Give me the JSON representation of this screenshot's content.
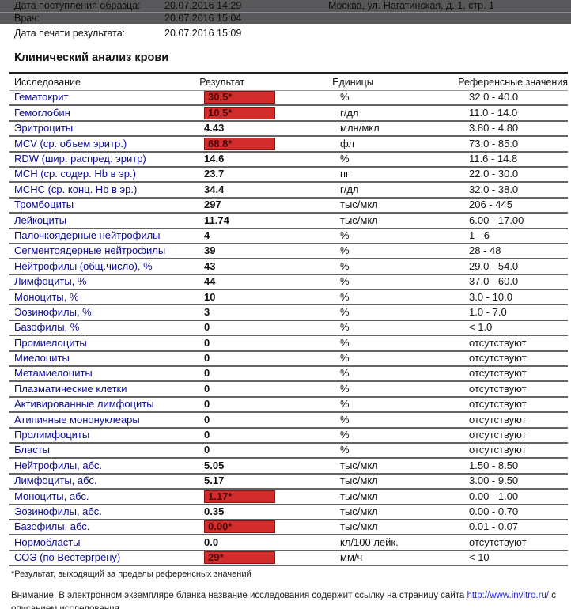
{
  "header": {
    "rows": [
      {
        "label": "Дата поступления образца:",
        "value": "20.07.2016 14:29"
      },
      {
        "label": "Врач:",
        "value": "20.07.2016 15:04"
      },
      {
        "label": "Дата печати результата:",
        "value": "20.07.2016 15:09"
      }
    ],
    "clinic_address": "Москва, ул. Нагатинская, д. 1, стр. 1"
  },
  "section_title": "Клинический анализ крови",
  "table": {
    "columns": [
      "Исследование",
      "Результат",
      "Единицы",
      "Референсные значения"
    ],
    "rows": [
      {
        "name": "Гематокрит",
        "result": "30.5*",
        "flag": true,
        "units": "%",
        "ref": "32.0 - 40.0"
      },
      {
        "name": "Гемоглобин",
        "result": "10.5*",
        "flag": true,
        "units": "г/дл",
        "ref": "11.0 - 14.0"
      },
      {
        "name": "Эритроциты",
        "result": "4.43",
        "flag": false,
        "units": "млн/мкл",
        "ref": "3.80 - 4.80"
      },
      {
        "name": "MCV (ср. объем эритр.)",
        "result": "68.8*",
        "flag": true,
        "units": "фл",
        "ref": "73.0 - 85.0"
      },
      {
        "name": "RDW (шир. распред. эритр)",
        "result": "14.6",
        "flag": false,
        "units": "%",
        "ref": "11.6 - 14.8"
      },
      {
        "name": "MCH (ср. содер. Hb в эр.)",
        "result": "23.7",
        "flag": false,
        "units": "пг",
        "ref": "22.0 - 30.0"
      },
      {
        "name": "МСНС (ср. конц. Hb в эр.)",
        "result": "34.4",
        "flag": false,
        "units": "г/дл",
        "ref": "32.0 - 38.0"
      },
      {
        "name": "Тромбоциты",
        "result": "297",
        "flag": false,
        "units": "тыс/мкл",
        "ref": "206 - 445"
      },
      {
        "name": "Лейкоциты",
        "result": "11.74",
        "flag": false,
        "units": "тыс/мкл",
        "ref": "6.00 - 17.00"
      },
      {
        "name": "Палочкоядерные нейтрофилы",
        "result": "4",
        "flag": false,
        "units": "%",
        "ref": "1 - 6"
      },
      {
        "name": "Сегментоядерные нейтрофилы",
        "result": "39",
        "flag": false,
        "units": "%",
        "ref": "28 - 48"
      },
      {
        "name": "Нейтрофилы (общ.число), %",
        "result": "43",
        "flag": false,
        "units": "%",
        "ref": "29.0 - 54.0"
      },
      {
        "name": "Лимфоциты, %",
        "result": "44",
        "flag": false,
        "units": "%",
        "ref": "37.0 - 60.0"
      },
      {
        "name": "Моноциты, %",
        "result": "10",
        "flag": false,
        "units": "%",
        "ref": "3.0 - 10.0"
      },
      {
        "name": "Эозинофилы, %",
        "result": "3",
        "flag": false,
        "units": "%",
        "ref": "1.0 - 7.0"
      },
      {
        "name": "Базофилы, %",
        "result": "0",
        "flag": false,
        "units": "%",
        "ref": "< 1.0"
      },
      {
        "name": "Промиелоциты",
        "result": "0",
        "flag": false,
        "units": "%",
        "ref": "отсутствуют"
      },
      {
        "name": "Миелоциты",
        "result": "0",
        "flag": false,
        "units": "%",
        "ref": "отсутствуют"
      },
      {
        "name": "Метамиелоциты",
        "result": "0",
        "flag": false,
        "units": "%",
        "ref": "отсутствуют"
      },
      {
        "name": "Плазматические клетки",
        "result": "0",
        "flag": false,
        "units": "%",
        "ref": "отсутствуют"
      },
      {
        "name": "Активированные лимфоциты",
        "result": "0",
        "flag": false,
        "units": "%",
        "ref": "отсутствуют"
      },
      {
        "name": "Атипичные мононуклеары",
        "result": "0",
        "flag": false,
        "units": "%",
        "ref": "отсутствуют"
      },
      {
        "name": "Пролимфоциты",
        "result": "0",
        "flag": false,
        "units": "%",
        "ref": "отсутствуют"
      },
      {
        "name": "Бласты",
        "result": "0",
        "flag": false,
        "units": "%",
        "ref": "отсутствуют"
      },
      {
        "name": "Нейтрофилы, абс.",
        "result": "5.05",
        "flag": false,
        "units": "тыс/мкл",
        "ref": "1.50 - 8.50"
      },
      {
        "name": "Лимфоциты, абс.",
        "result": "5.17",
        "flag": false,
        "units": "тыс/мкл",
        "ref": "3.00 - 9.50"
      },
      {
        "name": "Моноциты, абс.",
        "result": "1.17*",
        "flag": true,
        "units": "тыс/мкл",
        "ref": "0.00 - 1.00"
      },
      {
        "name": "Эозинофилы, абс.",
        "result": "0.35",
        "flag": false,
        "units": "тыс/мкл",
        "ref": "0.00 - 0.70"
      },
      {
        "name": "Базофилы, абс.",
        "result": "0.00*",
        "flag": true,
        "units": "тыс/мкл",
        "ref": "0.01 - 0.07"
      },
      {
        "name": "Нормобласты",
        "result": "0.0",
        "flag": false,
        "units": "кл/100 лейк.",
        "ref": "отсутствуют"
      },
      {
        "name": "СОЭ (по Вестергрену)",
        "result": "29*",
        "flag": true,
        "units": "мм/ч",
        "ref": "< 10"
      }
    ]
  },
  "footnotes": {
    "asterisk_note": "*Результат, выходящий за пределы референсных значений",
    "attention_prefix": "Внимание! В электронном экземпляре бланка название исследования содержит ссылку на страницу сайта ",
    "link": "http://www.invitro.ru/",
    "attention_suffix": " с описанием исследования."
  },
  "colors": {
    "flag_red": "#d22c2c",
    "flag_border": "#8f1010",
    "test_link_blue": "#0b0b97",
    "band_gray": "#58585b",
    "footer_link_blue": "#2b2bd4"
  }
}
